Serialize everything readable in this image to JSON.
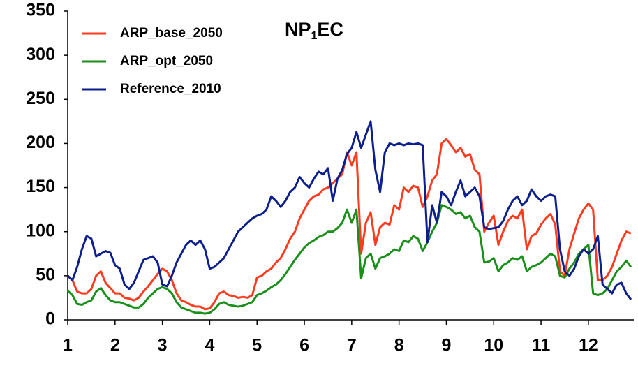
{
  "chart_data": {
    "type": "line",
    "title": [
      "NP",
      "1",
      "EC"
    ],
    "legend": "upper left",
    "x": [
      1.0,
      1.1,
      1.2,
      1.3,
      1.4,
      1.5,
      1.6,
      1.7,
      1.8,
      1.9,
      2.0,
      2.1,
      2.2,
      2.3,
      2.4,
      2.5,
      2.6,
      2.7,
      2.8,
      2.9,
      3.0,
      3.1,
      3.2,
      3.3,
      3.4,
      3.5,
      3.6,
      3.7,
      3.8,
      3.9,
      4.0,
      4.1,
      4.2,
      4.3,
      4.4,
      4.5,
      4.6,
      4.7,
      4.8,
      4.9,
      5.0,
      5.1,
      5.2,
      5.3,
      5.4,
      5.5,
      5.6,
      5.7,
      5.8,
      5.9,
      6.0,
      6.1,
      6.2,
      6.3,
      6.4,
      6.5,
      6.6,
      6.7,
      6.8,
      6.9,
      7.0,
      7.1,
      7.2,
      7.3,
      7.4,
      7.5,
      7.6,
      7.7,
      7.8,
      7.9,
      8.0,
      8.1,
      8.2,
      8.3,
      8.4,
      8.5,
      8.6,
      8.7,
      8.8,
      8.9,
      9.0,
      9.1,
      9.2,
      9.3,
      9.4,
      9.5,
      9.6,
      9.7,
      9.8,
      9.9,
      10.0,
      10.1,
      10.2,
      10.3,
      10.4,
      10.5,
      10.6,
      10.7,
      10.8,
      10.9,
      11.0,
      11.1,
      11.2,
      11.3,
      11.4,
      11.5,
      11.6,
      11.7,
      11.8,
      11.9,
      12.0,
      12.1,
      12.2,
      12.3,
      12.4,
      12.5,
      12.6,
      12.7,
      12.8,
      12.9
    ],
    "series": [
      {
        "name": "ARP_base_2050",
        "color": "#ff3b1f",
        "values": [
          50,
          45,
          32,
          30,
          30,
          35,
          50,
          55,
          42,
          36,
          30,
          30,
          25,
          24,
          22,
          25,
          32,
          38,
          45,
          52,
          58,
          55,
          45,
          30,
          22,
          20,
          17,
          15,
          15,
          12,
          13,
          20,
          30,
          32,
          28,
          27,
          25,
          26,
          25,
          28,
          48,
          50,
          55,
          58,
          65,
          70,
          80,
          92,
          100,
          115,
          125,
          135,
          140,
          142,
          148,
          150,
          155,
          160,
          165,
          190,
          175,
          190,
          75,
          110,
          122,
          85,
          105,
          110,
          108,
          130,
          125,
          150,
          145,
          152,
          150,
          128,
          140,
          158,
          165,
          200,
          205,
          198,
          190,
          195,
          185,
          188,
          170,
          165,
          100,
          110,
          118,
          85,
          100,
          112,
          118,
          115,
          125,
          80,
          95,
          98,
          108,
          115,
          120,
          108,
          55,
          50,
          80,
          98,
          115,
          125,
          132,
          125,
          45,
          45,
          50,
          60,
          75,
          90,
          100,
          98
        ]
      },
      {
        "name": "ARP_opt_2050",
        "color": "#1a8f1a",
        "values": [
          33,
          28,
          18,
          17,
          20,
          22,
          32,
          36,
          28,
          22,
          20,
          20,
          18,
          16,
          14,
          14,
          18,
          25,
          30,
          35,
          37,
          35,
          30,
          20,
          14,
          12,
          10,
          8,
          8,
          7,
          8,
          12,
          18,
          20,
          17,
          16,
          15,
          16,
          18,
          20,
          28,
          30,
          33,
          37,
          40,
          45,
          52,
          60,
          68,
          75,
          82,
          87,
          90,
          94,
          96,
          100,
          100,
          104,
          110,
          125,
          110,
          125,
          47,
          70,
          75,
          58,
          70,
          72,
          75,
          80,
          78,
          90,
          88,
          95,
          92,
          78,
          88,
          100,
          110,
          130,
          128,
          125,
          120,
          122,
          115,
          118,
          105,
          100,
          65,
          66,
          70,
          55,
          62,
          65,
          70,
          68,
          72,
          55,
          60,
          62,
          65,
          70,
          75,
          72,
          50,
          48,
          58,
          65,
          75,
          80,
          85,
          30,
          28,
          30,
          35,
          45,
          55,
          60,
          67,
          60
        ]
      },
      {
        "name": "Reference_2010",
        "color": "#0d1f8c",
        "values": [
          50,
          45,
          60,
          80,
          95,
          92,
          72,
          75,
          78,
          76,
          62,
          58,
          40,
          35,
          42,
          55,
          68,
          70,
          72,
          65,
          40,
          38,
          50,
          65,
          75,
          85,
          90,
          85,
          90,
          80,
          58,
          60,
          65,
          70,
          80,
          90,
          100,
          105,
          110,
          115,
          118,
          120,
          125,
          140,
          135,
          128,
          135,
          145,
          150,
          162,
          155,
          150,
          160,
          168,
          165,
          172,
          135,
          160,
          170,
          188,
          195,
          213,
          195,
          210,
          225,
          170,
          145,
          190,
          200,
          198,
          200,
          198,
          200,
          199,
          200,
          198,
          88,
          130,
          110,
          145,
          140,
          130,
          145,
          158,
          140,
          145,
          150,
          140,
          105,
          103,
          104,
          105,
          112,
          125,
          135,
          140,
          130,
          135,
          148,
          140,
          135,
          140,
          142,
          140,
          80,
          55,
          50,
          58,
          72,
          80,
          75,
          80,
          95,
          40,
          35,
          30,
          40,
          42,
          30,
          23
        ]
      }
    ],
    "xlim": [
      1,
      12.96
    ],
    "xticks": [
      1,
      2,
      3,
      4,
      5,
      6,
      7,
      8,
      9,
      10,
      11,
      12
    ],
    "ylim": [
      0,
      350
    ],
    "yticks": [
      0,
      50,
      100,
      150,
      200,
      250,
      300,
      350
    ]
  }
}
